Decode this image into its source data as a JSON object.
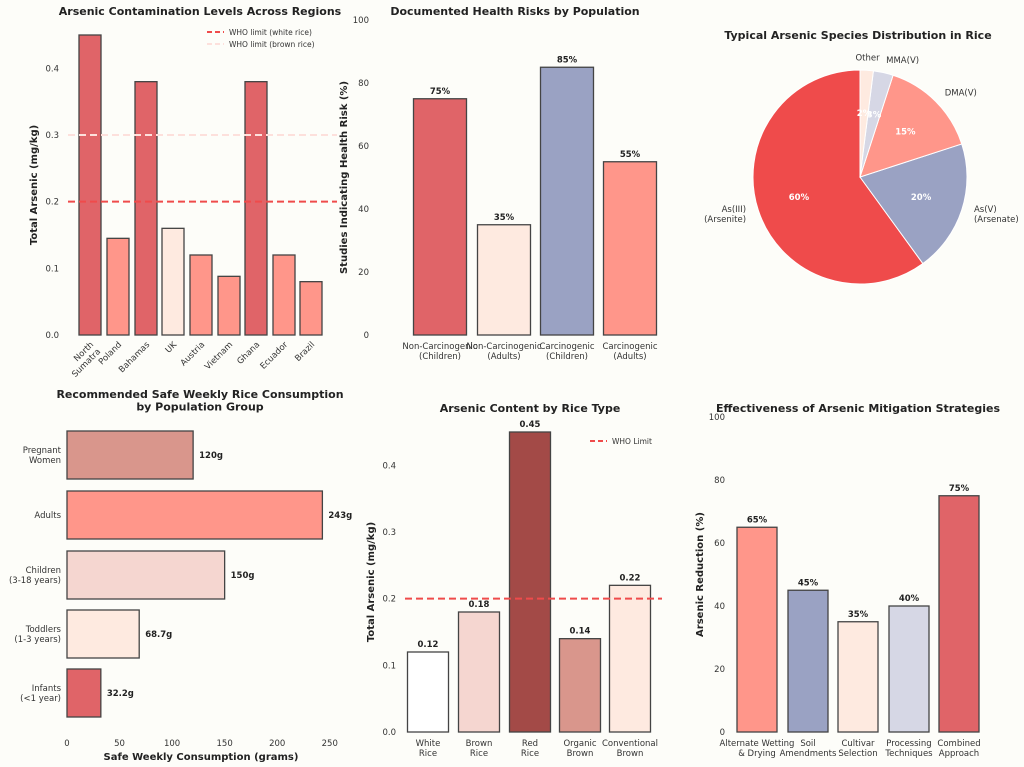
{
  "chart_data": [
    {
      "type": "bar",
      "title": "Arsenic Contamination Levels Across Regions",
      "ylabel": "Total Arsenic (mg/kg)",
      "xlabel": "",
      "ylim": [
        0,
        0.45
      ],
      "yticks": [
        "0.0",
        "0.1",
        "0.2",
        "0.3",
        "0.4"
      ],
      "categories": [
        "North Sumatra",
        "Poland",
        "Bahamas",
        "UK",
        "Austria",
        "Vietnam",
        "Ghana",
        "Ecuador",
        "Brazil"
      ],
      "values": [
        0.45,
        0.145,
        0.38,
        0.16,
        0.12,
        0.088,
        0.38,
        0.12,
        0.08
      ],
      "colors": [
        "#e06468",
        "#ff968a",
        "#e06468",
        "#feeae0",
        "#ff968a",
        "#ff968a",
        "#e06468",
        "#ff968a",
        "#ff968a"
      ],
      "reference_lines": [
        {
          "label": "WHO limit (white rice)",
          "value": 0.2,
          "color": "#ef4b4b"
        },
        {
          "label": "WHO limit (brown rice)",
          "value": 0.3,
          "color": "#fde0dc"
        }
      ],
      "legend": "top-right",
      "grid": false
    },
    {
      "type": "bar",
      "title": "Documented Health Risks by Population",
      "ylabel": "Studies Indicating Health Risk (%)",
      "ylim": [
        0,
        100
      ],
      "yticks": [
        "0",
        "20",
        "40",
        "60",
        "80",
        "100"
      ],
      "categories": [
        "Non-Carcinogenic\n(Children)",
        "Non-Carcinogenic\n(Adults)",
        "Carcinogenic\n(Children)",
        "Carcinogenic\n(Adults)"
      ],
      "values": [
        75,
        35,
        85,
        55
      ],
      "data_labels": [
        "75%",
        "35%",
        "85%",
        "55%"
      ],
      "colors": [
        "#e06468",
        "#feeae0",
        "#9aa2c3",
        "#ff968a"
      ],
      "grid": false
    },
    {
      "type": "pie",
      "title": "Typical Arsenic Species Distribution in Rice",
      "labels": [
        "As(III)\n(Arsenite)",
        "As(V)\n(Arsenate)",
        "DMA(V)",
        "MMA(V)",
        "Other"
      ],
      "values": [
        60,
        20,
        15,
        3,
        2
      ],
      "data_labels": [
        "60%",
        "20%",
        "15%",
        "3%",
        "2%"
      ],
      "colors": [
        "#ef4b4b",
        "#9aa2c3",
        "#ff968a",
        "#d6d7e5",
        "#feeae0"
      ]
    },
    {
      "type": "barh",
      "title": "Recommended Safe Weekly Rice Consumption\nby Population Group",
      "xlabel": "Safe Weekly Consumption (grams)",
      "xlim": [
        0,
        255
      ],
      "xticks": [
        "0",
        "50",
        "100",
        "150",
        "200",
        "250"
      ],
      "categories": [
        "Pregnant\nWomen",
        "Adults",
        "Children\n(3-18 years)",
        "Toddlers\n(1-3 years)",
        "Infants\n(<1 year)"
      ],
      "values": [
        120,
        243,
        150,
        68.7,
        32.2
      ],
      "data_labels": [
        "120g",
        "243g",
        "150g",
        "68.7g",
        "32.2g"
      ],
      "colors": [
        "#d9968c",
        "#ff968a",
        "#f5d6d0",
        "#feeae0",
        "#e06468"
      ],
      "grid": false
    },
    {
      "type": "bar",
      "title": "Arsenic Content by Rice Type",
      "ylabel": "Total Arsenic (mg/kg)",
      "ylim": [
        0,
        0.45
      ],
      "yticks": [
        "0.0",
        "0.1",
        "0.2",
        "0.3",
        "0.4"
      ],
      "categories": [
        "White\nRice",
        "Brown\nRice",
        "Red\nRice",
        "Organic\nBrown",
        "Conventional\nBrown"
      ],
      "values": [
        0.12,
        0.18,
        0.45,
        0.14,
        0.22
      ],
      "data_labels": [
        "0.12",
        "0.18",
        "0.45",
        "0.14",
        "0.22"
      ],
      "colors": [
        "#ffffff",
        "#f5d6d0",
        "#a34a47",
        "#d9968c",
        "#feeae0"
      ],
      "reference_lines": [
        {
          "label": "WHO Limit",
          "value": 0.2,
          "color": "#ef4b4b"
        }
      ],
      "legend": "top-right",
      "grid": false
    },
    {
      "type": "bar",
      "title": "Effectiveness of Arsenic Mitigation Strategies",
      "ylabel": "Arsenic Reduction (%)",
      "ylim": [
        0,
        100
      ],
      "yticks": [
        "0",
        "20",
        "40",
        "60",
        "80",
        "100"
      ],
      "categories": [
        "Alternate Wetting\n& Drying",
        "Soil\nAmendments",
        "Cultivar\nSelection",
        "Processing\nTechniques",
        "Combined\nApproach"
      ],
      "values": [
        65,
        45,
        35,
        40,
        75
      ],
      "data_labels": [
        "65%",
        "45%",
        "35%",
        "40%",
        "75%"
      ],
      "colors": [
        "#ff968a",
        "#9aa2c3",
        "#feeae0",
        "#d6d7e5",
        "#e06468"
      ],
      "grid": false
    }
  ]
}
